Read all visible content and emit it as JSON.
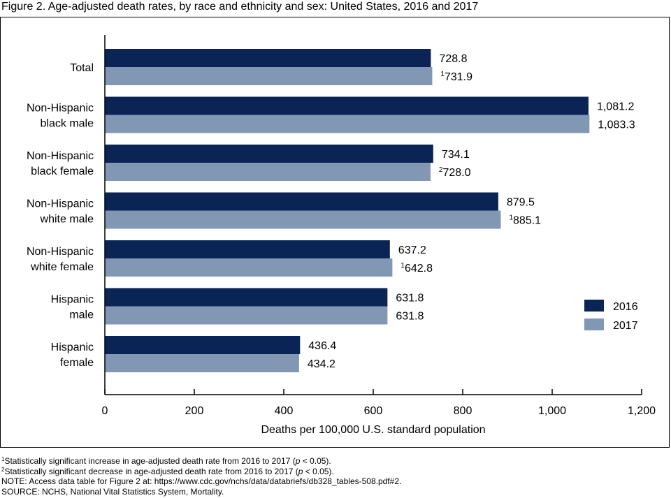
{
  "title": "Figure 2. Age-adjusted death rates, by race and ethnicity and sex: United States, 2016 and 2017",
  "chart_data": {
    "type": "bar",
    "orientation": "horizontal",
    "title": "",
    "xlabel": "Deaths per 100,000 U.S. standard population",
    "ylabel": "",
    "xlim": [
      0,
      1200
    ],
    "xticks": [
      {
        "value": 0,
        "label": "0"
      },
      {
        "value": 200,
        "label": "200"
      },
      {
        "value": 400,
        "label": "400"
      },
      {
        "value": 600,
        "label": "600"
      },
      {
        "value": 800,
        "label": "800"
      },
      {
        "value": 1000,
        "label": "1,000"
      },
      {
        "value": 1200,
        "label": "1,200"
      }
    ],
    "grid": false,
    "legend_position": "right",
    "categories": [
      [
        "Total"
      ],
      [
        "Non-Hispanic",
        "black male"
      ],
      [
        "Non-Hispanic",
        "black female"
      ],
      [
        "Non-Hispanic",
        "white male"
      ],
      [
        "Non-Hispanic",
        "white female"
      ],
      [
        "Hispanic",
        "male"
      ],
      [
        "Hispanic",
        "female"
      ]
    ],
    "series": [
      {
        "name": "2016",
        "color": "#0a2456",
        "values": [
          728.8,
          1081.2,
          734.1,
          879.5,
          637.2,
          631.8,
          436.4
        ],
        "labels": [
          {
            "sup": "",
            "text": "728.8"
          },
          {
            "sup": "",
            "text": "1,081.2"
          },
          {
            "sup": "",
            "text": "734.1"
          },
          {
            "sup": "",
            "text": "879.5"
          },
          {
            "sup": "",
            "text": "637.2"
          },
          {
            "sup": "",
            "text": "631.8"
          },
          {
            "sup": "",
            "text": "436.4"
          }
        ]
      },
      {
        "name": "2017",
        "color": "#8297b3",
        "values": [
          731.9,
          1083.3,
          728.0,
          885.1,
          642.8,
          631.8,
          434.2
        ],
        "labels": [
          {
            "sup": "1",
            "text": "731.9"
          },
          {
            "sup": "",
            "text": "1,083.3"
          },
          {
            "sup": "2",
            "text": "728.0"
          },
          {
            "sup": "1",
            "text": "885.1"
          },
          {
            "sup": "1",
            "text": "642.8"
          },
          {
            "sup": "",
            "text": "631.8"
          },
          {
            "sup": "",
            "text": "434.2"
          }
        ]
      }
    ]
  },
  "footnotes": {
    "note1": {
      "sup": "1",
      "pre": "Statistically significant increase in age-adjusted death rate from 2016 to 2017 (",
      "italic": "p",
      "post": " < 0.05)."
    },
    "note2": {
      "sup": "2",
      "pre": "Statistically significant decrease in age-adjusted death rate from 2016 to 2017 (",
      "italic": "p",
      "post": " < 0.05)."
    },
    "note3": "NOTE: Access data table for Figure 2 at: https://www.cdc.gov/nchs/data/databriefs/db328_tables-508.pdf#2.",
    "source": "SOURCE: NCHS, National Vital Statistics System, Mortality."
  }
}
